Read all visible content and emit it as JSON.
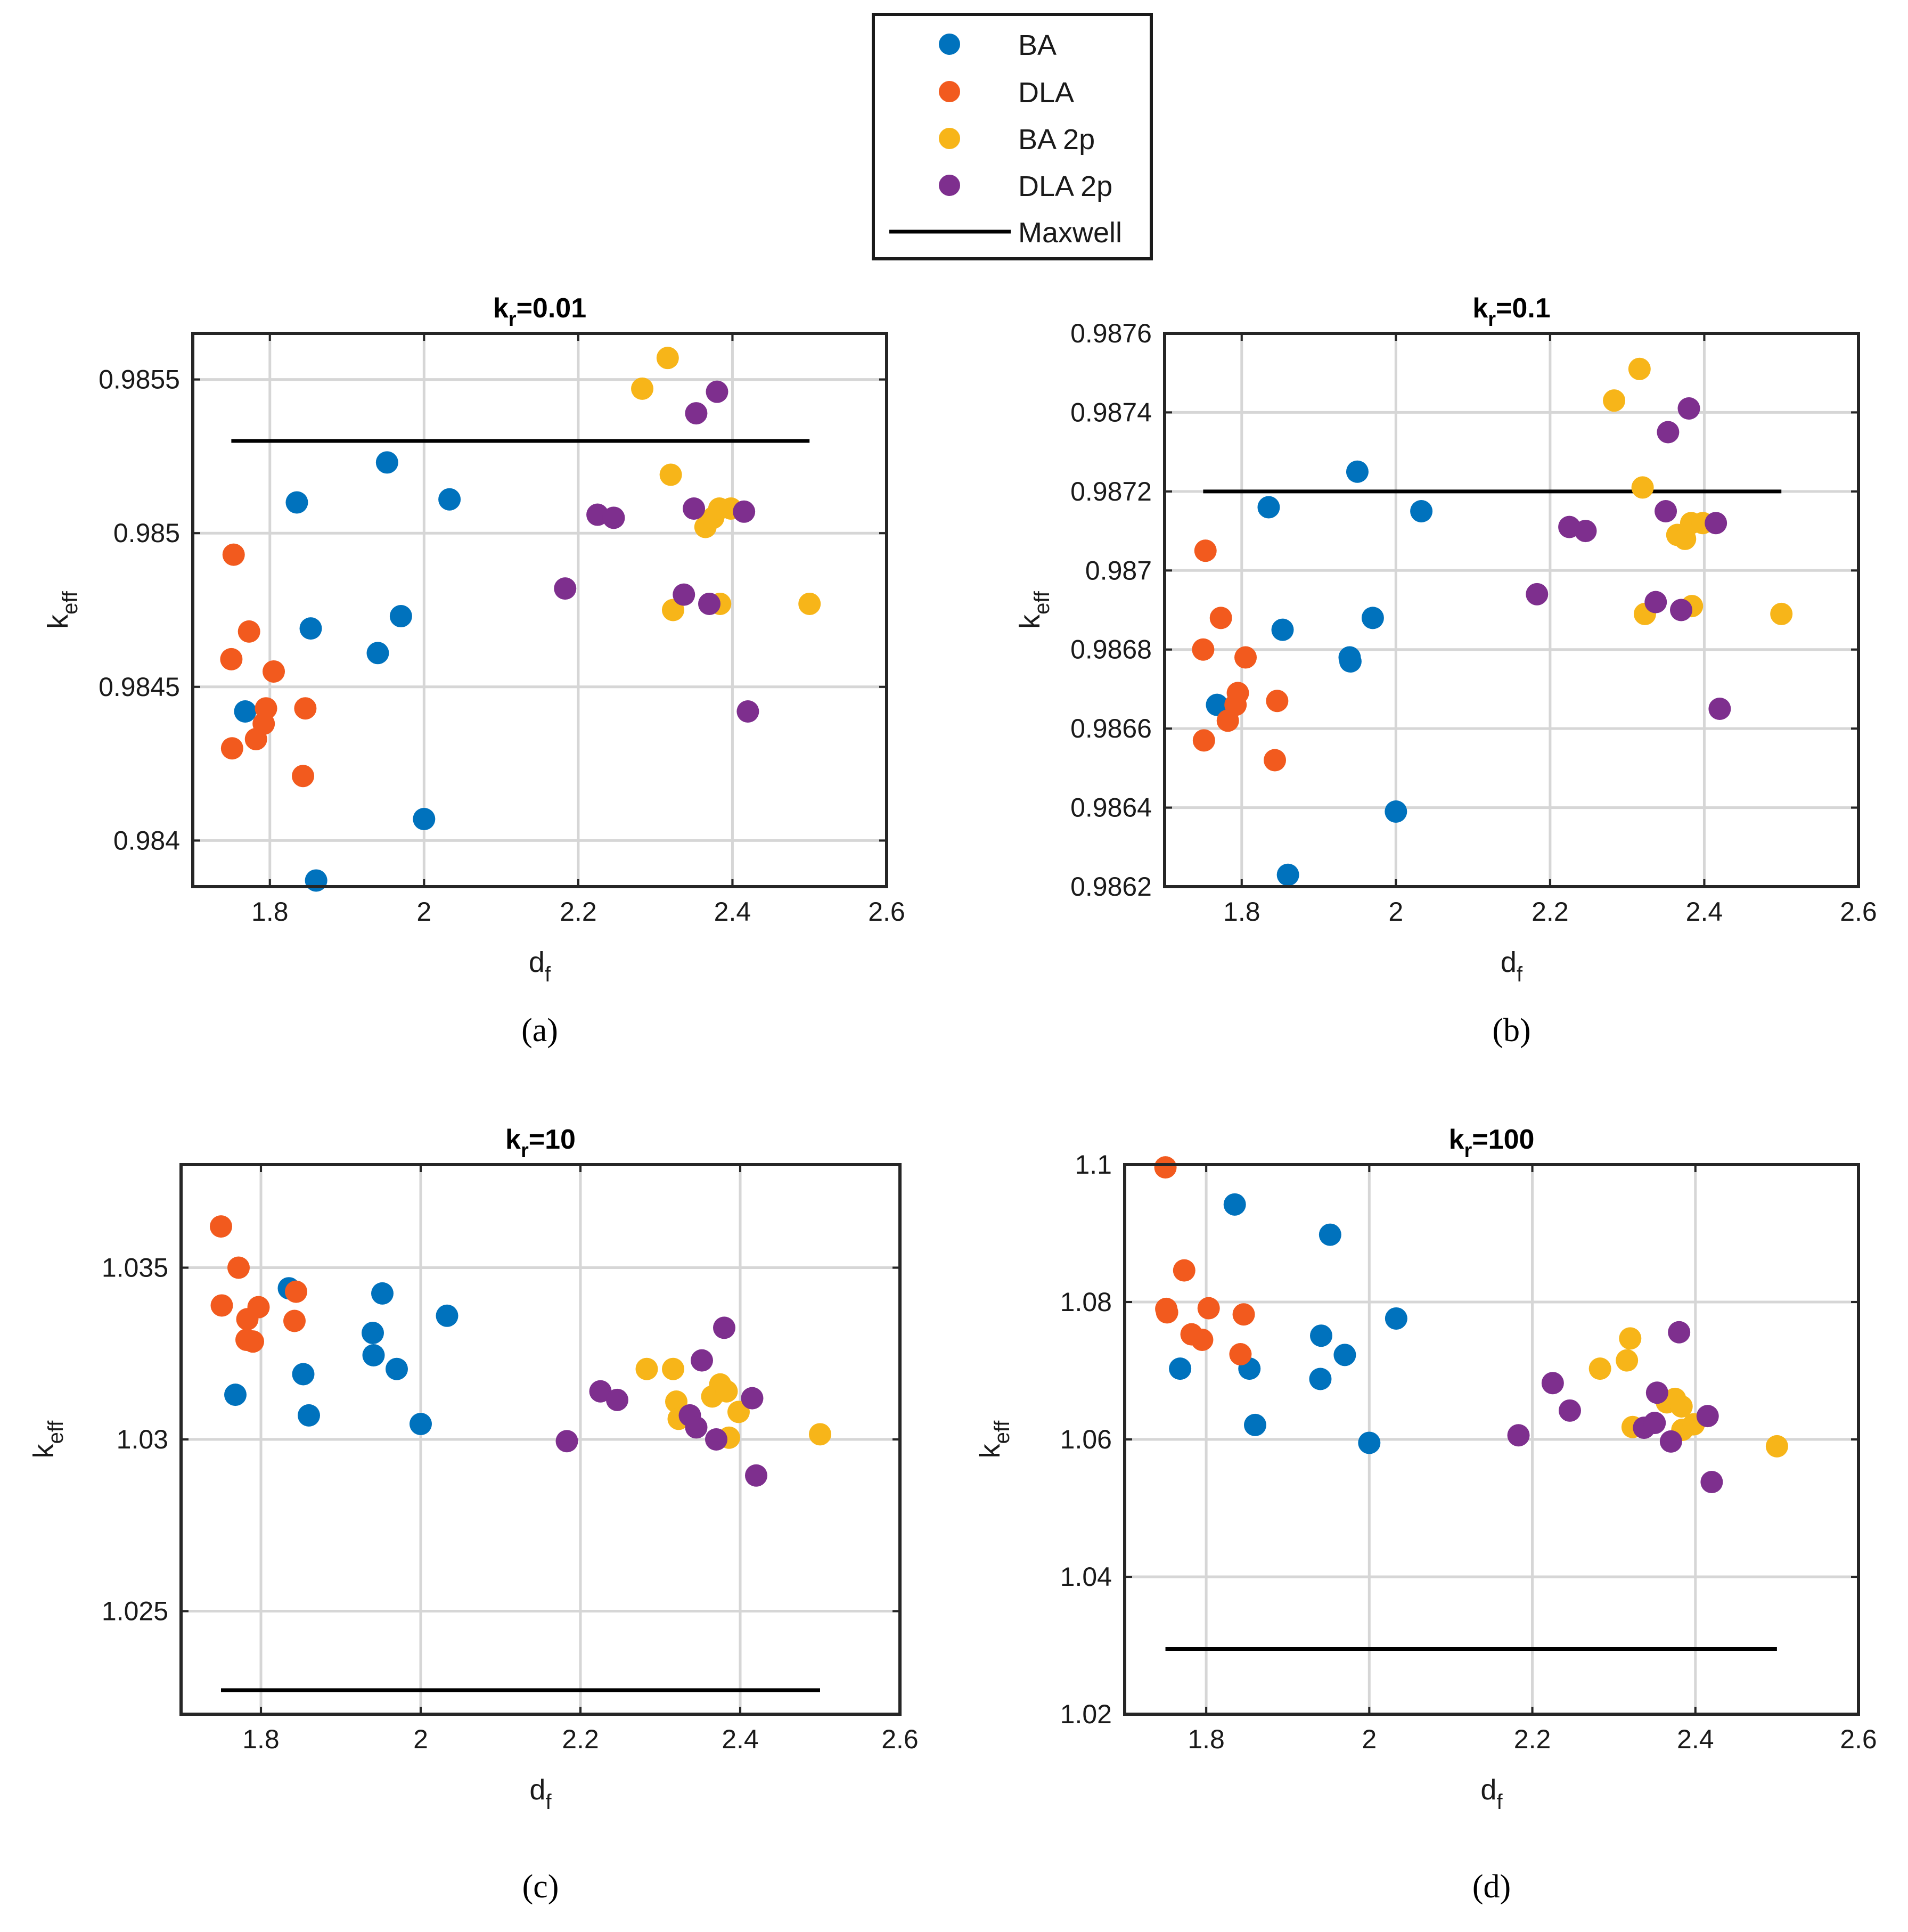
{
  "legend": {
    "entries": [
      {
        "label": "BA",
        "color": "#0072BD",
        "marker": "circle"
      },
      {
        "label": "DLA",
        "color": "#F25A1E",
        "marker": "circle"
      },
      {
        "label": "BA 2p",
        "color": "#F7B519",
        "marker": "circle"
      },
      {
        "label": "DLA 2p",
        "color": "#7E2F8E",
        "marker": "circle"
      },
      {
        "label": "Maxwell",
        "color": "#000000",
        "marker": "line"
      }
    ]
  },
  "chart_data": [
    {
      "type": "scatter",
      "panel_label": "(a)",
      "title_main": "k",
      "title_sub": "r",
      "title_rest": "=0.01",
      "xlabel_main": "d",
      "xlabel_sub": "f",
      "ylabel_main": "k",
      "ylabel_sub": "eff",
      "xlim": [
        1.7,
        2.6
      ],
      "ylim": [
        0.98385,
        0.98565
      ],
      "xticks": [
        1.8,
        2,
        2.2,
        2.4,
        2.6
      ],
      "xtick_labels": [
        "1.8",
        "2",
        "2.2",
        "2.4",
        "2.6"
      ],
      "yticks": [
        0.984,
        0.9845,
        0.985,
        0.9855
      ],
      "ytick_labels": [
        "0.984",
        "0.9845",
        "0.985",
        "0.9855"
      ],
      "grid": true,
      "maxwell": {
        "x": [
          1.75,
          2.5
        ],
        "y": 0.9853
      },
      "series": [
        {
          "name": "BA",
          "x": [
            1.768,
            1.835,
            1.853,
            1.86,
            1.94,
            1.952,
            1.97,
            2.0,
            2.033
          ],
          "y": [
            0.98442,
            0.9851,
            0.98469,
            0.98387,
            0.98461,
            0.98523,
            0.98473,
            0.98407,
            0.98511
          ]
        },
        {
          "name": "DLA",
          "x": [
            1.75,
            1.751,
            1.753,
            1.773,
            1.782,
            1.792,
            1.795,
            1.805,
            1.843,
            1.846
          ],
          "y": [
            0.98459,
            0.9843,
            0.98493,
            0.98468,
            0.98433,
            0.98438,
            0.98443,
            0.98455,
            0.98421,
            0.98443
          ]
        },
        {
          "name": "BA 2p",
          "x": [
            2.283,
            2.316,
            2.32,
            2.323,
            2.365,
            2.375,
            2.383,
            2.384,
            2.398,
            2.5
          ],
          "y": [
            0.98547,
            0.98557,
            0.98519,
            0.98475,
            0.98502,
            0.98505,
            0.98508,
            0.98477,
            0.98508,
            0.98477
          ]
        },
        {
          "name": "DLA 2p",
          "x": [
            2.183,
            2.225,
            2.246,
            2.337,
            2.35,
            2.353,
            2.37,
            2.38,
            2.415,
            2.42
          ],
          "y": [
            0.98482,
            0.98506,
            0.98505,
            0.9848,
            0.98508,
            0.98539,
            0.98477,
            0.98546,
            0.98507,
            0.98442
          ]
        }
      ]
    },
    {
      "type": "scatter",
      "panel_label": "(b)",
      "title_main": "k",
      "title_sub": "r",
      "title_rest": "=0.1",
      "xlabel_main": "d",
      "xlabel_sub": "f",
      "ylabel_main": "k",
      "ylabel_sub": "eff",
      "xlim": [
        1.7,
        2.6
      ],
      "ylim": [
        0.9862,
        0.9876
      ],
      "xticks": [
        1.8,
        2,
        2.2,
        2.4,
        2.6
      ],
      "xtick_labels": [
        "1.8",
        "2",
        "2.2",
        "2.4",
        "2.6"
      ],
      "yticks": [
        0.9862,
        0.9864,
        0.9866,
        0.9868,
        0.987,
        0.9872,
        0.9874,
        0.9876
      ],
      "ytick_labels": [
        "0.9862",
        "0.9864",
        "0.9866",
        "0.9868",
        "0.987",
        "0.9872",
        "0.9874",
        "0.9876"
      ],
      "grid": true,
      "maxwell": {
        "x": [
          1.75,
          2.5
        ],
        "y": 0.9872
      },
      "series": [
        {
          "name": "BA",
          "x": [
            1.768,
            1.835,
            1.853,
            1.86,
            1.94,
            1.941,
            1.95,
            1.97,
            2.0,
            2.033
          ],
          "y": [
            0.98666,
            0.98716,
            0.98685,
            0.98623,
            0.98678,
            0.98677,
            0.98725,
            0.98688,
            0.98639,
            0.98715
          ]
        },
        {
          "name": "DLA",
          "x": [
            1.75,
            1.751,
            1.753,
            1.773,
            1.782,
            1.792,
            1.795,
            1.805,
            1.843,
            1.846
          ],
          "y": [
            0.9868,
            0.98657,
            0.98705,
            0.98688,
            0.98662,
            0.98666,
            0.98669,
            0.98678,
            0.98652,
            0.98667
          ]
        },
        {
          "name": "BA 2p",
          "x": [
            2.283,
            2.316,
            2.32,
            2.323,
            2.365,
            2.375,
            2.383,
            2.384,
            2.398,
            2.5
          ],
          "y": [
            0.98743,
            0.98751,
            0.98721,
            0.98689,
            0.98709,
            0.98708,
            0.98712,
            0.98691,
            0.98712,
            0.98689
          ]
        },
        {
          "name": "DLA 2p",
          "x": [
            2.183,
            2.225,
            2.246,
            2.337,
            2.35,
            2.353,
            2.37,
            2.38,
            2.415,
            2.42
          ],
          "y": [
            0.98694,
            0.98711,
            0.9871,
            0.98692,
            0.98715,
            0.98735,
            0.9869,
            0.98741,
            0.98712,
            0.98665
          ]
        }
      ]
    },
    {
      "type": "scatter",
      "panel_label": "(c)",
      "title_main": "k",
      "title_sub": "r",
      "title_rest": "=10",
      "xlabel_main": "d",
      "xlabel_sub": "f",
      "ylabel_main": "k",
      "ylabel_sub": "eff",
      "xlim": [
        1.7,
        2.6
      ],
      "ylim": [
        1.022,
        1.038
      ],
      "xticks": [
        1.8,
        2,
        2.2,
        2.4,
        2.6
      ],
      "xtick_labels": [
        "1.8",
        "2",
        "2.2",
        "2.4",
        "2.6"
      ],
      "yticks": [
        1.025,
        1.03,
        1.035
      ],
      "ytick_labels": [
        "1.025",
        "1.03",
        "1.035"
      ],
      "grid": true,
      "maxwell": {
        "x": [
          1.75,
          2.5
        ],
        "y": 1.0227
      },
      "series": [
        {
          "name": "BA",
          "x": [
            1.768,
            1.835,
            1.853,
            1.86,
            1.94,
            1.941,
            1.952,
            1.97,
            2.0,
            2.033
          ],
          "y": [
            1.0313,
            1.0344,
            1.0319,
            1.0307,
            1.0331,
            1.03245,
            1.03425,
            1.03205,
            1.03045,
            1.0336
          ]
        },
        {
          "name": "DLA",
          "x": [
            1.75,
            1.751,
            1.772,
            1.782,
            1.783,
            1.79,
            1.797,
            1.842,
            1.844
          ],
          "y": [
            1.0362,
            1.0339,
            1.035,
            1.0329,
            1.0335,
            1.03285,
            1.03385,
            1.03345,
            1.0343
          ]
        },
        {
          "name": "BA 2p",
          "x": [
            2.283,
            2.316,
            2.32,
            2.323,
            2.365,
            2.375,
            2.383,
            2.386,
            2.398,
            2.5
          ],
          "y": [
            1.03205,
            1.03205,
            1.0311,
            1.0306,
            1.03125,
            1.0316,
            1.0314,
            1.03005,
            1.0308,
            1.03015
          ]
        },
        {
          "name": "DLA 2p",
          "x": [
            2.183,
            2.225,
            2.246,
            2.337,
            2.345,
            2.352,
            2.37,
            2.38,
            2.415,
            2.42
          ],
          "y": [
            1.02995,
            1.0314,
            1.03115,
            1.0307,
            1.03035,
            1.0323,
            1.03,
            1.03325,
            1.0312,
            1.02895
          ]
        }
      ]
    },
    {
      "type": "scatter",
      "panel_label": "(d)",
      "title_main": "k",
      "title_sub": "r",
      "title_rest": "=100",
      "xlabel_main": "d",
      "xlabel_sub": "f",
      "ylabel_main": "k",
      "ylabel_sub": "eff",
      "xlim": [
        1.7,
        2.6
      ],
      "ylim": [
        1.02,
        1.1
      ],
      "xticks": [
        1.8,
        2,
        2.2,
        2.4,
        2.6
      ],
      "xtick_labels": [
        "1.8",
        "2",
        "2.2",
        "2.4",
        "2.6"
      ],
      "yticks": [
        1.02,
        1.04,
        1.06,
        1.08,
        1.1
      ],
      "ytick_labels": [
        "1.02",
        "1.04",
        "1.06",
        "1.08",
        "1.1"
      ],
      "grid": true,
      "maxwell": {
        "x": [
          1.75,
          2.5
        ],
        "y": 1.0295
      },
      "series": [
        {
          "name": "BA",
          "x": [
            1.768,
            1.835,
            1.853,
            1.86,
            1.94,
            1.941,
            1.952,
            1.97,
            2.0,
            2.033
          ],
          "y": [
            1.0703,
            1.0942,
            1.0703,
            1.0621,
            1.0688,
            1.0751,
            1.0898,
            1.0723,
            1.0595,
            1.0776
          ]
        },
        {
          "name": "DLA",
          "x": [
            1.75,
            1.751,
            1.752,
            1.773,
            1.782,
            1.795,
            1.803,
            1.842,
            1.846
          ],
          "y": [
            1.0996,
            1.079,
            1.0785,
            1.0846,
            1.0753,
            1.0745,
            1.0791,
            1.0724,
            1.0782
          ]
        },
        {
          "name": "BA 2p",
          "x": [
            2.283,
            2.316,
            2.32,
            2.323,
            2.365,
            2.375,
            2.383,
            2.384,
            2.398,
            2.5
          ],
          "y": [
            1.0703,
            1.0715,
            1.0747,
            1.0618,
            1.0654,
            1.0659,
            1.0648,
            1.0614,
            1.0622,
            1.059
          ]
        },
        {
          "name": "DLA 2p",
          "x": [
            2.183,
            2.225,
            2.246,
            2.337,
            2.35,
            2.353,
            2.37,
            2.38,
            2.415,
            2.42
          ],
          "y": [
            1.0606,
            1.0682,
            1.0642,
            1.0617,
            1.0624,
            1.0668,
            1.0597,
            1.0756,
            1.0634,
            1.0538
          ]
        }
      ]
    }
  ]
}
